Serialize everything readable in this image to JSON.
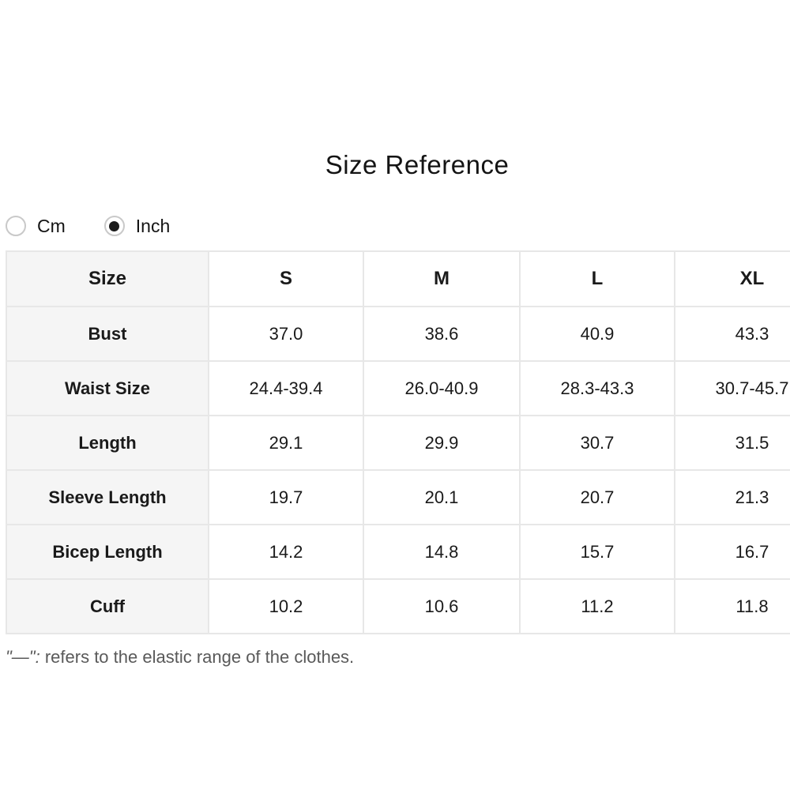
{
  "title": "Size Reference",
  "unit_toggle": {
    "options": [
      {
        "label": "Cm",
        "selected": false
      },
      {
        "label": "Inch",
        "selected": true
      }
    ]
  },
  "table": {
    "header": [
      "Size",
      "S",
      "M",
      "L",
      "XL"
    ],
    "rows": [
      {
        "label": "Bust",
        "values": [
          "37.0",
          "38.6",
          "40.9",
          "43.3"
        ]
      },
      {
        "label": "Waist Size",
        "values": [
          "24.4-39.4",
          "26.0-40.9",
          "28.3-43.3",
          "30.7-45.7"
        ]
      },
      {
        "label": "Length",
        "values": [
          "29.1",
          "29.9",
          "30.7",
          "31.5"
        ]
      },
      {
        "label": "Sleeve Length",
        "values": [
          "19.7",
          "20.1",
          "20.7",
          "21.3"
        ]
      },
      {
        "label": "Bicep Length",
        "values": [
          "14.2",
          "14.8",
          "15.7",
          "16.7"
        ]
      },
      {
        "label": "Cuff",
        "values": [
          "10.2",
          "10.6",
          "11.2",
          "11.8"
        ]
      }
    ]
  },
  "footnote": {
    "prefix": "\"—\":",
    "text": " refers to the elastic range of the clothes."
  },
  "colors": {
    "label_cell_bg": "#f5f5f5",
    "border": "#e7e7e7",
    "text": "#1a1a1a",
    "footnote_text": "#595959",
    "radio_selected_dot": "#1b1b1b",
    "radio_border": "#c9c9c9"
  }
}
